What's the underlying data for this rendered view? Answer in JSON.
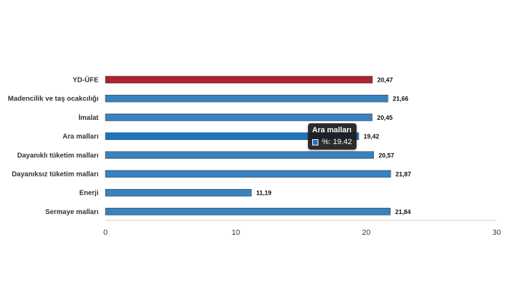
{
  "chart_data": {
    "type": "bar",
    "orientation": "horizontal",
    "categories": [
      "YD-ÜFE",
      "Madencilik ve taş ocakcılığı",
      "İmalat",
      "Ara malları",
      "Dayanıklı tüketim malları",
      "Dayanıksız tüketim malları",
      "Enerji",
      "Sermaye malları"
    ],
    "values": [
      20.47,
      21.66,
      20.45,
      19.42,
      20.57,
      21.87,
      11.19,
      21.84
    ],
    "value_labels": [
      "20,47",
      "21,66",
      "20,45",
      "19,42",
      "20,57",
      "21,87",
      "11,19",
      "21,84"
    ],
    "bar_colors": [
      "#b0232a",
      "#3a82bf",
      "#3a82bf",
      "#1f73c1",
      "#3a82bf",
      "#3a82bf",
      "#3a82bf",
      "#3a82bf"
    ],
    "xlim": [
      0,
      30
    ],
    "x_ticks": [
      "0",
      "10",
      "20",
      "30"
    ],
    "grid": false,
    "tooltip": {
      "title": "Ara malları",
      "series_label": "%: 19.42",
      "swatch_color": "#1f73c1"
    }
  }
}
